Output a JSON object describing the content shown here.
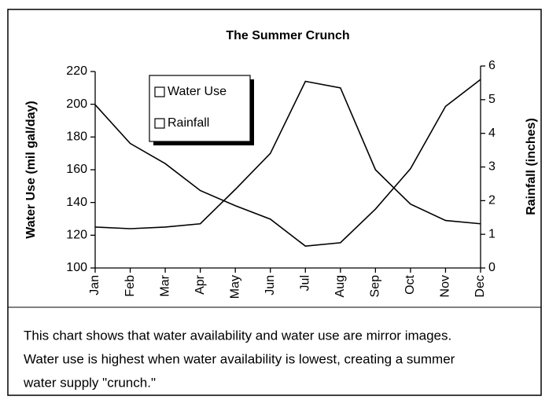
{
  "chart_data": {
    "type": "line",
    "title": "The Summer Crunch",
    "ylabel": "Water Use (mil gal/day)",
    "y2label": "Rainfall (inches)",
    "categories": [
      "Jan",
      "Feb",
      "Mar",
      "Apr",
      "May",
      "Jun",
      "Jul",
      "Aug",
      "Sep",
      "Oct",
      "Nov",
      "Dec"
    ],
    "series": [
      {
        "name": "Water Use",
        "color": "#000000",
        "values": [
          125,
          124,
          125,
          127,
          148,
          170,
          214,
          210,
          160,
          139,
          129,
          127
        ]
      },
      {
        "name": "Rainfall",
        "color": "#000000",
        "axis": "y2",
        "values": [
          4.85,
          3.7,
          3.1,
          2.3,
          1.85,
          1.45,
          0.65,
          0.75,
          1.75,
          2.95,
          4.8,
          5.6
        ]
      }
    ],
    "ylim": [
      100,
      220
    ],
    "yticks": [
      100,
      120,
      140,
      160,
      180,
      200,
      220
    ],
    "y2lim": [
      0,
      6
    ],
    "y2ticks": [
      0,
      1,
      2,
      3,
      4,
      5,
      6
    ],
    "legend": "upper left",
    "caption": [
      "This chart shows that water availability and water use are mirror images.",
      "Water use is highest when water availability is lowest, creating a summer",
      "water supply \"crunch.\""
    ]
  }
}
